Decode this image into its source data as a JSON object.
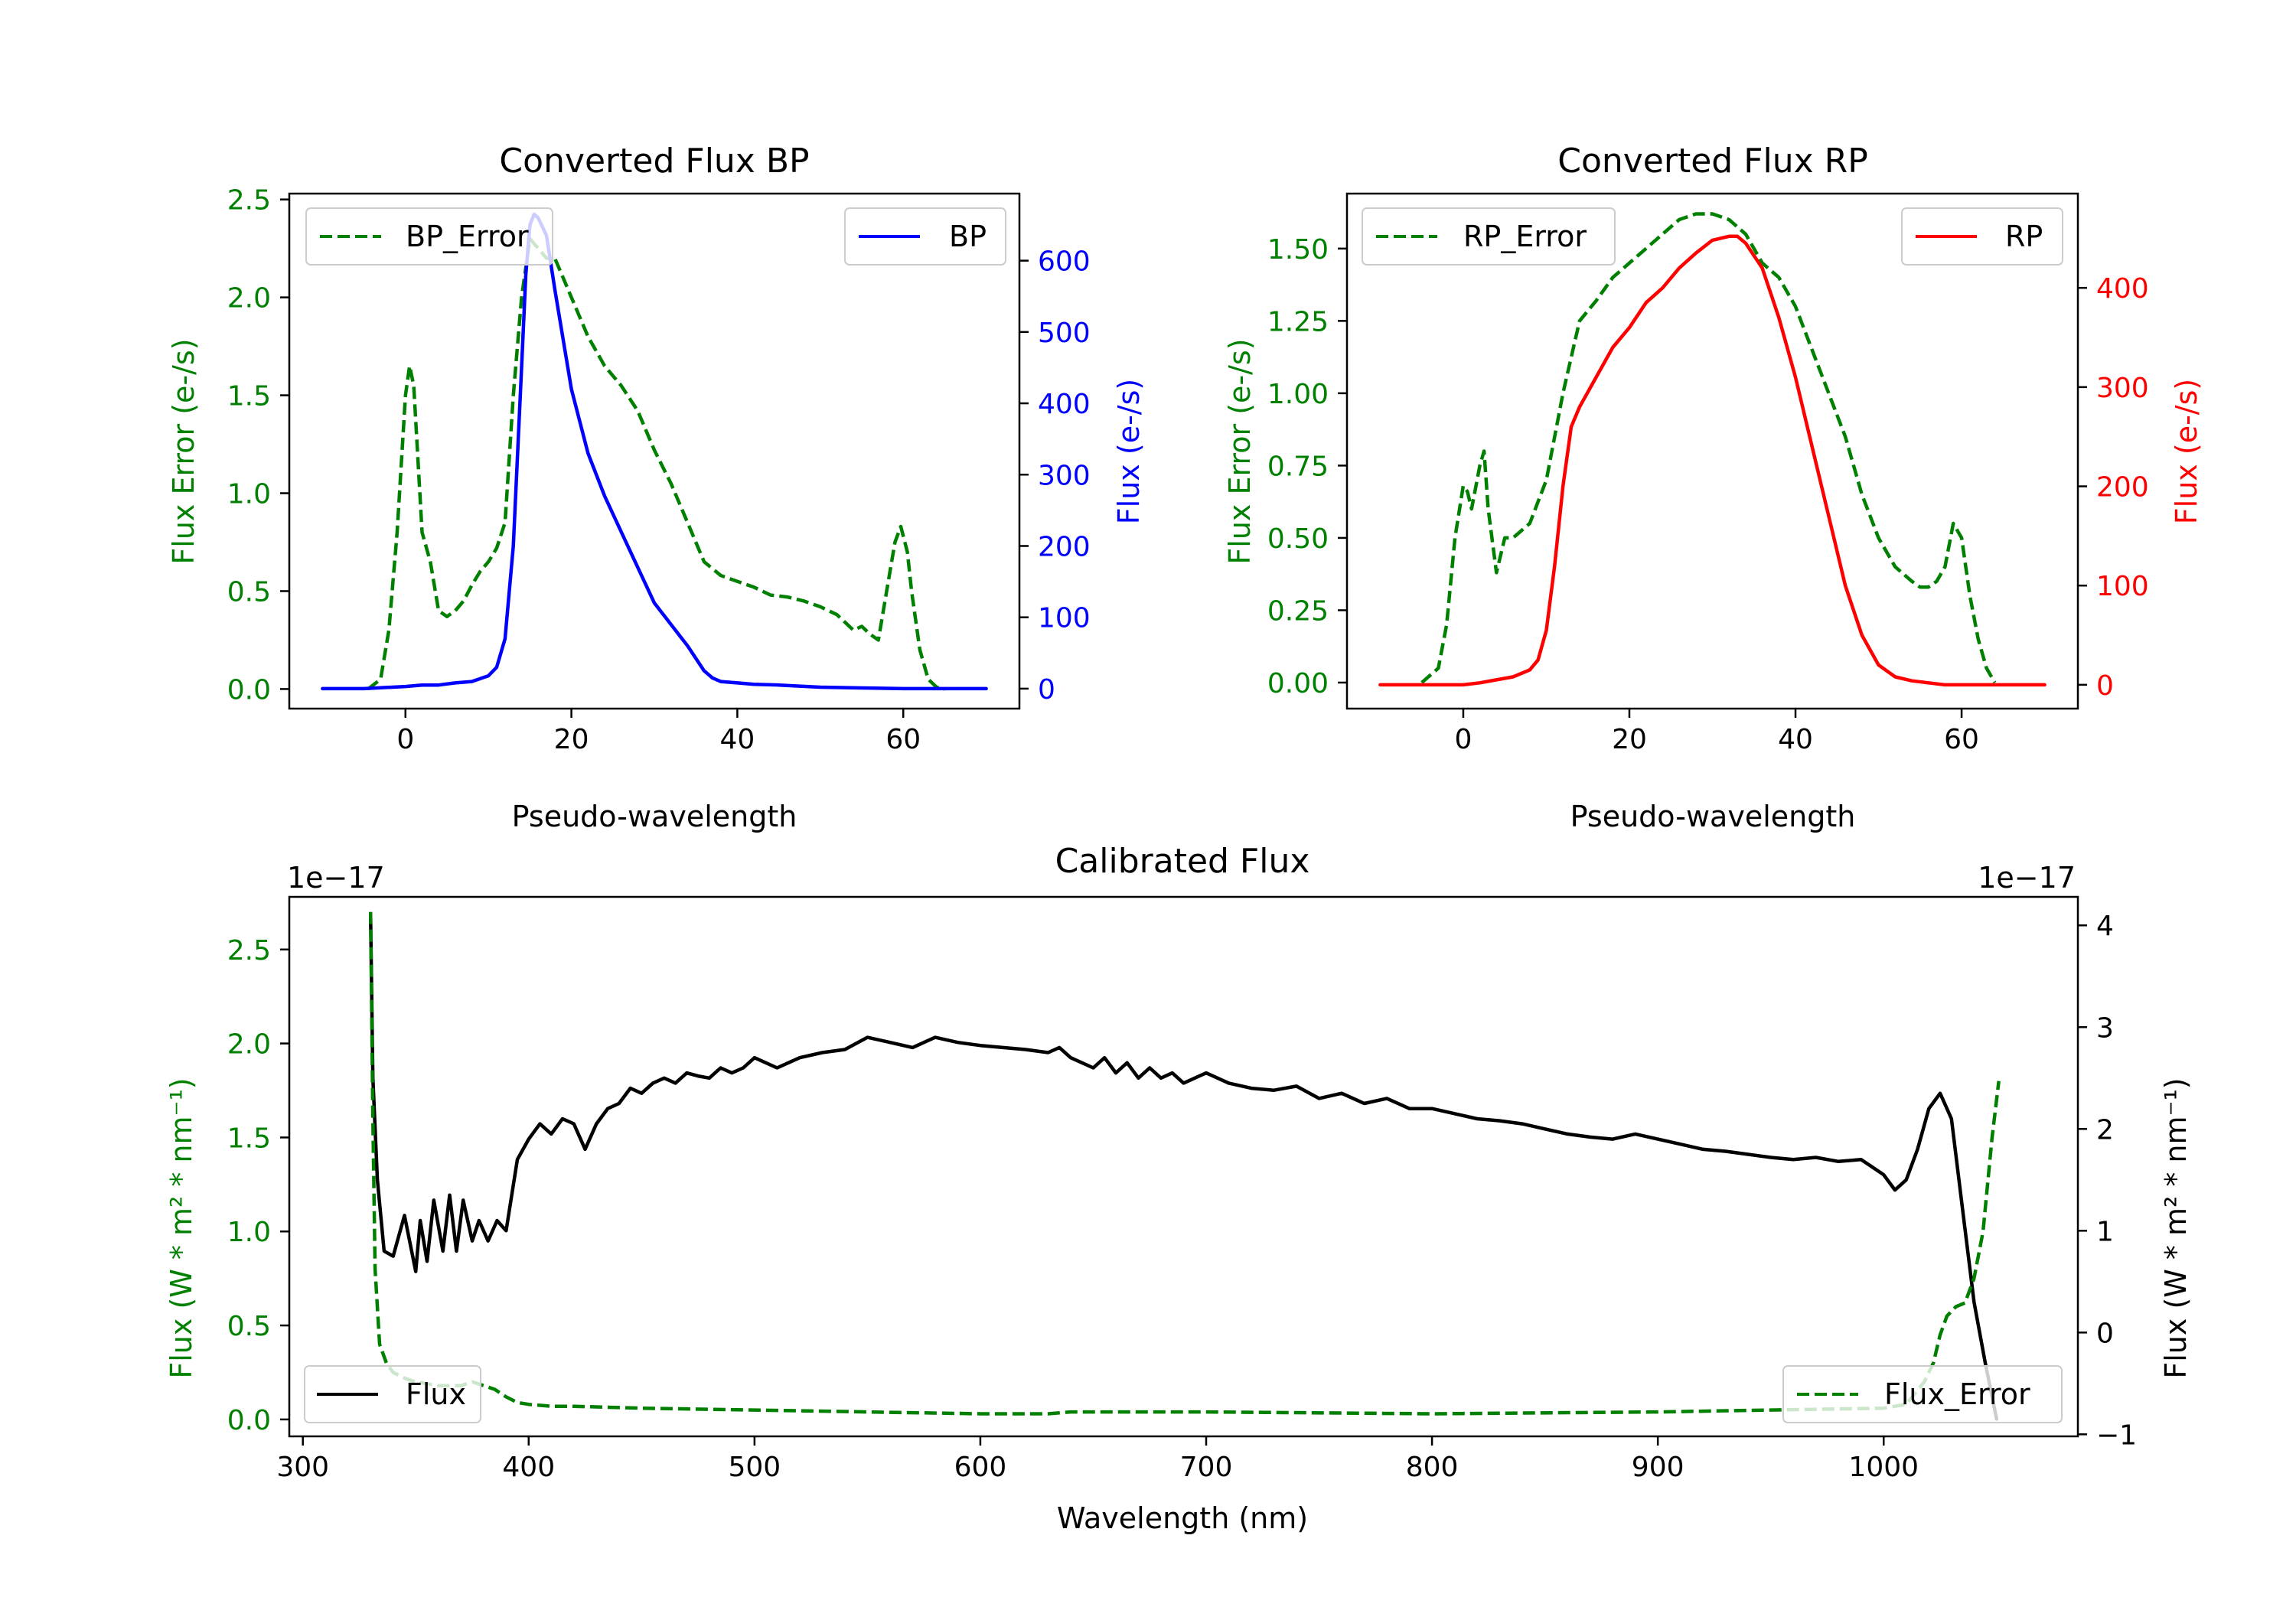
{
  "colors": {
    "bp": "#0000ff",
    "rp": "#ff0000",
    "error": "#008000",
    "flux": "#000000",
    "axis": "#000000"
  },
  "chart_data": [
    {
      "id": "bp",
      "type": "line",
      "title": "Converted Flux BP",
      "xlabel": "Pseudo-wavelength",
      "ylabel_left": "Flux Error (e-/s)",
      "ylabel_right": "Flux (e-/s)",
      "xlim": [
        -14,
        74
      ],
      "xticks": [
        0,
        20,
        40,
        60
      ],
      "xtick_labels": [
        "0",
        "20",
        "40",
        "60"
      ],
      "ylim_left": [
        -0.1,
        2.53
      ],
      "yticks_left": [
        0.0,
        0.5,
        1.0,
        1.5,
        2.0,
        2.5
      ],
      "ytick_labels_left": [
        "0.0",
        "0.5",
        "1.0",
        "1.5",
        "2.0",
        "2.5"
      ],
      "ylim_right": [
        -28,
        694
      ],
      "yticks_right": [
        0,
        100,
        200,
        300,
        400,
        500,
        600
      ],
      "ytick_labels_right": [
        "0",
        "100",
        "200",
        "300",
        "400",
        "500",
        "600"
      ],
      "legend_left": {
        "label": "BP_Error",
        "position": "upper-left"
      },
      "legend_right": {
        "label": "BP",
        "position": "upper-right"
      },
      "series": [
        {
          "name": "BP_Error",
          "axis": "left",
          "style": "dashed",
          "color": "#008000",
          "x": [
            -4.5,
            -3,
            -2,
            -1,
            0,
            0.5,
            1,
            2,
            3,
            4,
            5,
            6,
            7,
            8,
            9,
            10,
            11,
            12,
            13,
            14,
            15,
            16,
            17,
            18,
            19,
            20,
            22,
            24,
            26,
            28,
            30,
            32,
            34,
            36,
            38,
            40,
            42,
            44,
            46,
            48,
            50,
            52,
            54,
            55,
            56,
            57,
            58,
            59,
            59.7,
            60.5,
            61,
            62,
            63,
            64,
            65
          ],
          "values": [
            0.0,
            0.05,
            0.3,
            0.8,
            1.5,
            1.65,
            1.55,
            0.8,
            0.65,
            0.4,
            0.37,
            0.4,
            0.45,
            0.53,
            0.6,
            0.65,
            0.72,
            0.85,
            1.5,
            2.0,
            2.3,
            2.25,
            2.2,
            2.2,
            2.1,
            2.0,
            1.8,
            1.65,
            1.55,
            1.42,
            1.22,
            1.05,
            0.85,
            0.65,
            0.58,
            0.55,
            0.52,
            0.48,
            0.47,
            0.45,
            0.42,
            0.38,
            0.3,
            0.32,
            0.28,
            0.25,
            0.5,
            0.75,
            0.83,
            0.7,
            0.5,
            0.2,
            0.05,
            0.01,
            0.0
          ]
        },
        {
          "name": "BP",
          "axis": "right",
          "style": "solid",
          "color": "#0000ff",
          "x": [
            -10,
            -5,
            0,
            2,
            4,
            6,
            8,
            10,
            11,
            12,
            13,
            14,
            14.5,
            15,
            15.5,
            16,
            17,
            18,
            20,
            22,
            24,
            26,
            28,
            30,
            32,
            34,
            36,
            37,
            38,
            40,
            42,
            45,
            50,
            55,
            60,
            65,
            70
          ],
          "values": [
            0,
            0,
            3,
            5,
            5,
            8,
            10,
            18,
            30,
            70,
            200,
            450,
            580,
            650,
            665,
            660,
            635,
            560,
            420,
            330,
            270,
            220,
            170,
            120,
            90,
            60,
            25,
            15,
            10,
            8,
            6,
            5,
            2,
            1,
            0,
            0,
            0
          ]
        }
      ]
    },
    {
      "id": "rp",
      "type": "line",
      "title": "Converted Flux RP",
      "xlabel": "Pseudo-wavelength",
      "ylabel_left": "Flux Error (e-/s)",
      "ylabel_right": "Flux (e-/s)",
      "xlim": [
        -14,
        74
      ],
      "xticks": [
        0,
        20,
        40,
        60
      ],
      "xtick_labels": [
        "0",
        "20",
        "40",
        "60"
      ],
      "ylim_left": [
        -0.09,
        1.69
      ],
      "yticks_left": [
        0.0,
        0.25,
        0.5,
        0.75,
        1.0,
        1.25,
        1.5
      ],
      "ytick_labels_left": [
        "0.00",
        "0.25",
        "0.50",
        "0.75",
        "1.00",
        "1.25",
        "1.50"
      ],
      "ylim_right": [
        -24,
        495
      ],
      "yticks_right": [
        0,
        100,
        200,
        300,
        400
      ],
      "ytick_labels_right": [
        "0",
        "100",
        "200",
        "300",
        "400"
      ],
      "legend_left": {
        "label": "RP_Error",
        "position": "upper-left"
      },
      "legend_right": {
        "label": "RP",
        "position": "upper-right"
      },
      "series": [
        {
          "name": "RP_Error",
          "axis": "left",
          "style": "dashed",
          "color": "#008000",
          "x": [
            -5,
            -3,
            -2,
            -1,
            0,
            0.5,
            1,
            2,
            2.5,
            3,
            4,
            5,
            6,
            8,
            10,
            12,
            14,
            16,
            18,
            20,
            22,
            24,
            26,
            28,
            30,
            32,
            34,
            36,
            38,
            40,
            42,
            44,
            46,
            48,
            50,
            52,
            54,
            55,
            56,
            57,
            58,
            59,
            60,
            61,
            62,
            63,
            64
          ],
          "values": [
            0.0,
            0.05,
            0.2,
            0.5,
            0.68,
            0.66,
            0.6,
            0.75,
            0.8,
            0.6,
            0.38,
            0.5,
            0.5,
            0.55,
            0.7,
            1.0,
            1.25,
            1.32,
            1.4,
            1.45,
            1.5,
            1.55,
            1.6,
            1.62,
            1.62,
            1.6,
            1.55,
            1.45,
            1.4,
            1.3,
            1.15,
            1.0,
            0.85,
            0.65,
            0.5,
            0.4,
            0.35,
            0.33,
            0.33,
            0.35,
            0.4,
            0.55,
            0.5,
            0.3,
            0.15,
            0.05,
            0.0
          ]
        },
        {
          "name": "RP",
          "axis": "right",
          "style": "solid",
          "color": "#ff0000",
          "x": [
            -10,
            -5,
            0,
            2,
            4,
            6,
            8,
            9,
            10,
            11,
            12,
            13,
            14,
            16,
            18,
            20,
            22,
            24,
            26,
            28,
            30,
            32,
            33,
            34,
            36,
            38,
            40,
            42,
            44,
            46,
            48,
            50,
            52,
            54,
            56,
            58,
            60,
            65,
            70
          ],
          "values": [
            0,
            0,
            0,
            2,
            5,
            8,
            15,
            25,
            55,
            120,
            200,
            260,
            280,
            310,
            340,
            360,
            385,
            400,
            420,
            435,
            448,
            452,
            452,
            445,
            420,
            370,
            310,
            240,
            170,
            100,
            50,
            20,
            8,
            4,
            2,
            0,
            0,
            0,
            0
          ]
        }
      ]
    },
    {
      "id": "calibrated",
      "type": "line",
      "title": "Calibrated Flux",
      "xlabel": "Wavelength (nm)",
      "ylabel_left": "Flux (W * m² * nm⁻¹)",
      "ylabel_right": "Flux (W * m² * nm⁻¹)",
      "multiplier_left": "1e−17",
      "multiplier_right": "1e−17",
      "xlim": [
        294,
        1086
      ],
      "xticks": [
        300,
        400,
        500,
        600,
        700,
        800,
        900,
        1000
      ],
      "xtick_labels": [
        "300",
        "400",
        "500",
        "600",
        "700",
        "800",
        "900",
        "1000"
      ],
      "ylim_left": [
        -0.09,
        2.78
      ],
      "yticks_left": [
        0.0,
        0.5,
        1.0,
        1.5,
        2.0,
        2.5
      ],
      "ytick_labels_left": [
        "0.0",
        "0.5",
        "1.0",
        "1.5",
        "2.0",
        "2.5"
      ],
      "ylim_right": [
        -1.02,
        4.28
      ],
      "yticks_right": [
        -1,
        0,
        1,
        2,
        3,
        4
      ],
      "ytick_labels_right": [
        "−1",
        "0",
        "1",
        "2",
        "3",
        "4"
      ],
      "legend_left": {
        "label": "Flux",
        "position": "lower-left"
      },
      "legend_right": {
        "label": "Flux_Error",
        "position": "lower-right"
      },
      "series": [
        {
          "name": "Flux",
          "axis": "right",
          "style": "solid",
          "color": "#000000",
          "x": [
            330,
            331,
            333,
            336,
            340,
            345,
            350,
            352,
            355,
            358,
            362,
            365,
            368,
            371,
            375,
            378,
            382,
            386,
            390,
            395,
            400,
            405,
            410,
            415,
            420,
            425,
            430,
            435,
            440,
            445,
            450,
            455,
            460,
            465,
            470,
            475,
            480,
            485,
            490,
            495,
            500,
            505,
            510,
            520,
            530,
            540,
            550,
            560,
            570,
            580,
            590,
            600,
            610,
            620,
            630,
            635,
            640,
            645,
            650,
            655,
            660,
            665,
            670,
            675,
            680,
            685,
            690,
            700,
            710,
            720,
            730,
            740,
            750,
            760,
            770,
            780,
            790,
            800,
            810,
            820,
            830,
            840,
            850,
            860,
            870,
            880,
            890,
            900,
            910,
            920,
            930,
            940,
            950,
            960,
            970,
            980,
            990,
            1000,
            1005,
            1010,
            1015,
            1020,
            1025,
            1030,
            1035,
            1040,
            1045,
            1050
          ],
          "values": [
            4.1,
            2.5,
            1.5,
            0.8,
            0.75,
            1.15,
            0.6,
            1.1,
            0.7,
            1.3,
            0.8,
            1.35,
            0.8,
            1.3,
            0.9,
            1.1,
            0.9,
            1.1,
            1.0,
            1.7,
            1.9,
            2.05,
            1.95,
            2.1,
            2.05,
            1.8,
            2.05,
            2.2,
            2.25,
            2.4,
            2.35,
            2.45,
            2.5,
            2.45,
            2.55,
            2.52,
            2.5,
            2.6,
            2.55,
            2.6,
            2.7,
            2.65,
            2.6,
            2.7,
            2.75,
            2.78,
            2.9,
            2.85,
            2.8,
            2.9,
            2.85,
            2.82,
            2.8,
            2.78,
            2.75,
            2.8,
            2.7,
            2.65,
            2.6,
            2.7,
            2.55,
            2.65,
            2.5,
            2.6,
            2.5,
            2.55,
            2.45,
            2.55,
            2.45,
            2.4,
            2.38,
            2.42,
            2.3,
            2.35,
            2.25,
            2.3,
            2.2,
            2.2,
            2.15,
            2.1,
            2.08,
            2.05,
            2.0,
            1.95,
            1.92,
            1.9,
            1.95,
            1.9,
            1.85,
            1.8,
            1.78,
            1.75,
            1.72,
            1.7,
            1.72,
            1.68,
            1.7,
            1.55,
            1.4,
            1.5,
            1.8,
            2.2,
            2.35,
            2.1,
            1.2,
            0.3,
            -0.3,
            -0.85
          ]
        },
        {
          "name": "Flux_Error",
          "axis": "left",
          "style": "dashed",
          "color": "#008000",
          "x": [
            330,
            331,
            332,
            334,
            337,
            340,
            345,
            350,
            360,
            370,
            375,
            380,
            385,
            390,
            395,
            400,
            410,
            420,
            450,
            500,
            550,
            600,
            630,
            640,
            650,
            700,
            800,
            900,
            950,
            1000,
            1010,
            1018,
            1022,
            1025,
            1028,
            1032,
            1036,
            1040,
            1044,
            1048,
            1051
          ],
          "values": [
            2.7,
            1.6,
            0.8,
            0.4,
            0.3,
            0.25,
            0.22,
            0.2,
            0.18,
            0.18,
            0.2,
            0.18,
            0.16,
            0.12,
            0.09,
            0.08,
            0.07,
            0.07,
            0.06,
            0.05,
            0.04,
            0.03,
            0.03,
            0.04,
            0.04,
            0.04,
            0.03,
            0.04,
            0.05,
            0.06,
            0.08,
            0.2,
            0.3,
            0.45,
            0.55,
            0.6,
            0.62,
            0.75,
            1.0,
            1.5,
            1.8
          ]
        }
      ]
    }
  ]
}
